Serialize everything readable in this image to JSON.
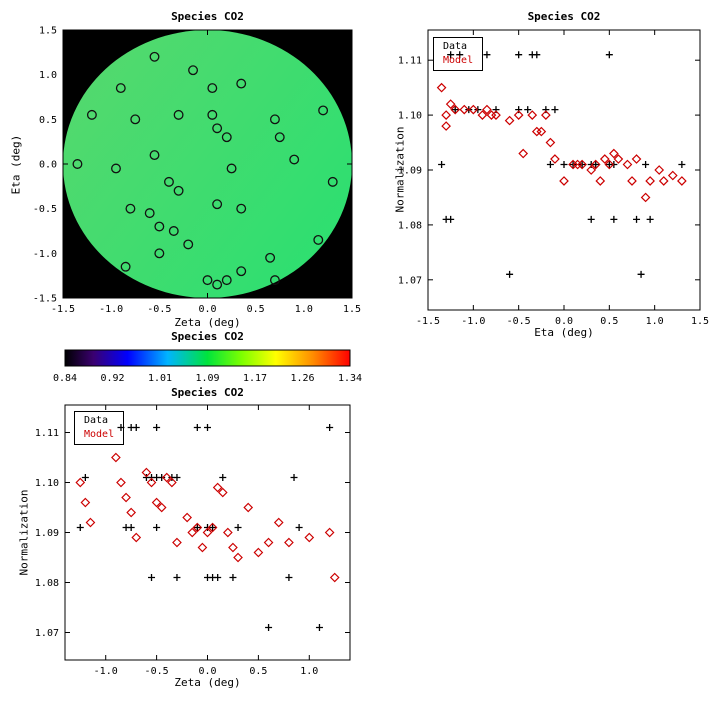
{
  "colors": {
    "data_series": "#000000",
    "model_series": "#cc0000",
    "panel_background": "#000000",
    "disk_inner": "#58d86e",
    "disk_outer": "#2edf70"
  },
  "chart_data": [
    {
      "id": "map",
      "type": "scatter",
      "title": "Species CO2",
      "xlabel": "Zeta (deg)",
      "ylabel": "Eta (deg)",
      "xlim": [
        -1.5,
        1.5
      ],
      "ylim": [
        -1.5,
        1.5
      ],
      "xticks": [
        "-1.5",
        "-1.0",
        "-0.5",
        "0.0",
        "0.5",
        "1.0",
        "1.5"
      ],
      "yticks": [
        "-1.5",
        "-1.0",
        "-0.5",
        "0.0",
        "0.5",
        "1.0",
        "1.5"
      ],
      "background": "#000000",
      "disk": {
        "cx": 0.0,
        "cy": 0.0,
        "r": 1.5
      },
      "marker": "open-circle",
      "points": [
        [
          -0.55,
          1.2
        ],
        [
          -0.15,
          1.05
        ],
        [
          -0.9,
          0.85
        ],
        [
          0.05,
          0.85
        ],
        [
          0.35,
          0.9
        ],
        [
          -1.2,
          0.55
        ],
        [
          -0.75,
          0.5
        ],
        [
          -0.3,
          0.55
        ],
        [
          0.05,
          0.55
        ],
        [
          0.1,
          0.4
        ],
        [
          0.7,
          0.5
        ],
        [
          0.75,
          0.3
        ],
        [
          1.2,
          0.6
        ],
        [
          -1.35,
          0.0
        ],
        [
          -0.95,
          -0.05
        ],
        [
          -0.55,
          0.1
        ],
        [
          -0.4,
          -0.2
        ],
        [
          -0.3,
          -0.3
        ],
        [
          0.2,
          0.3
        ],
        [
          0.25,
          -0.05
        ],
        [
          0.9,
          0.05
        ],
        [
          1.3,
          -0.2
        ],
        [
          -0.8,
          -0.5
        ],
        [
          -0.6,
          -0.55
        ],
        [
          -0.5,
          -0.7
        ],
        [
          -0.35,
          -0.75
        ],
        [
          0.1,
          -0.45
        ],
        [
          0.35,
          -0.5
        ],
        [
          -0.2,
          -0.9
        ],
        [
          -0.5,
          -1.0
        ],
        [
          -0.85,
          -1.15
        ],
        [
          0.0,
          -1.3
        ],
        [
          0.1,
          -1.35
        ],
        [
          0.2,
          -1.3
        ],
        [
          0.35,
          -1.2
        ],
        [
          0.65,
          -1.05
        ],
        [
          1.15,
          -0.85
        ],
        [
          0.7,
          -1.3
        ]
      ]
    },
    {
      "id": "eta_scatter",
      "type": "scatter",
      "title": "Species CO2",
      "xlabel": "Eta (deg)",
      "ylabel": "Normalization",
      "xlim": [
        -1.5,
        1.5
      ],
      "ylim": [
        1.0645,
        1.1155
      ],
      "xticks": [
        "-1.5",
        "-1.0",
        "-0.5",
        "0.0",
        "0.5",
        "1.0",
        "1.5"
      ],
      "yticks": [
        "1.07",
        "1.08",
        "1.09",
        "1.10",
        "1.11"
      ],
      "legend_position": "top-left",
      "series": [
        {
          "name": "Data",
          "marker": "plus",
          "color": "#000000",
          "points": [
            [
              -1.25,
              1.111
            ],
            [
              -1.15,
              1.111
            ],
            [
              -0.85,
              1.111
            ],
            [
              -0.5,
              1.111
            ],
            [
              -0.35,
              1.111
            ],
            [
              -0.3,
              1.111
            ],
            [
              0.5,
              1.111
            ],
            [
              -1.2,
              1.101
            ],
            [
              -1.05,
              1.101
            ],
            [
              -0.95,
              1.101
            ],
            [
              -0.75,
              1.101
            ],
            [
              -0.5,
              1.101
            ],
            [
              -0.4,
              1.101
            ],
            [
              -0.2,
              1.101
            ],
            [
              -0.1,
              1.101
            ],
            [
              -1.35,
              1.091
            ],
            [
              -0.15,
              1.091
            ],
            [
              0.0,
              1.091
            ],
            [
              0.1,
              1.091
            ],
            [
              0.2,
              1.091
            ],
            [
              0.3,
              1.091
            ],
            [
              0.35,
              1.091
            ],
            [
              0.5,
              1.091
            ],
            [
              0.55,
              1.091
            ],
            [
              0.9,
              1.091
            ],
            [
              1.3,
              1.091
            ],
            [
              -1.3,
              1.081
            ],
            [
              -1.25,
              1.081
            ],
            [
              0.3,
              1.081
            ],
            [
              0.55,
              1.081
            ],
            [
              0.8,
              1.081
            ],
            [
              0.95,
              1.081
            ],
            [
              -0.6,
              1.071
            ],
            [
              0.85,
              1.071
            ]
          ]
        },
        {
          "name": "Model",
          "marker": "diamond",
          "color": "#cc0000",
          "points": [
            [
              -1.35,
              1.105
            ],
            [
              -1.3,
              1.1
            ],
            [
              -1.3,
              1.098
            ],
            [
              -1.25,
              1.102
            ],
            [
              -1.2,
              1.101
            ],
            [
              -1.1,
              1.101
            ],
            [
              -1.0,
              1.101
            ],
            [
              -0.9,
              1.1
            ],
            [
              -0.85,
              1.101
            ],
            [
              -0.8,
              1.1
            ],
            [
              -0.75,
              1.1
            ],
            [
              -0.6,
              1.099
            ],
            [
              -0.5,
              1.1
            ],
            [
              -0.45,
              1.093
            ],
            [
              -0.35,
              1.1
            ],
            [
              -0.3,
              1.097
            ],
            [
              -0.25,
              1.097
            ],
            [
              -0.2,
              1.1
            ],
            [
              -0.15,
              1.095
            ],
            [
              -0.1,
              1.092
            ],
            [
              0.0,
              1.088
            ],
            [
              0.1,
              1.091
            ],
            [
              0.15,
              1.091
            ],
            [
              0.2,
              1.091
            ],
            [
              0.3,
              1.09
            ],
            [
              0.35,
              1.091
            ],
            [
              0.4,
              1.088
            ],
            [
              0.45,
              1.092
            ],
            [
              0.5,
              1.091
            ],
            [
              0.55,
              1.093
            ],
            [
              0.6,
              1.092
            ],
            [
              0.7,
              1.091
            ],
            [
              0.75,
              1.088
            ],
            [
              0.8,
              1.092
            ],
            [
              0.9,
              1.085
            ],
            [
              0.95,
              1.088
            ],
            [
              1.05,
              1.09
            ],
            [
              1.1,
              1.088
            ],
            [
              1.2,
              1.089
            ],
            [
              1.3,
              1.088
            ]
          ]
        }
      ]
    },
    {
      "id": "colorbar",
      "type": "colorbar",
      "title": "Species CO2",
      "ticks": [
        "0.84",
        "0.92",
        "1.01",
        "1.09",
        "1.17",
        "1.26",
        "1.34"
      ],
      "gradient": [
        [
          "0",
          "#000000"
        ],
        [
          "0.1",
          "#3a0070"
        ],
        [
          "0.22",
          "#0000ff"
        ],
        [
          "0.36",
          "#00b4ff"
        ],
        [
          "0.5",
          "#00e43c"
        ],
        [
          "0.62",
          "#7dff00"
        ],
        [
          "0.74",
          "#ffff00"
        ],
        [
          "0.87",
          "#ff8c00"
        ],
        [
          "1",
          "#ff0000"
        ]
      ]
    },
    {
      "id": "zeta_scatter",
      "type": "scatter",
      "title": "Species CO2",
      "xlabel": "Zeta (deg)",
      "ylabel": "Normalization",
      "xlim": [
        -1.4,
        1.4
      ],
      "ylim": [
        1.0645,
        1.1155
      ],
      "xticks": [
        "-1.0",
        "-0.5",
        "0.0",
        "0.5",
        "1.0"
      ],
      "yticks": [
        "1.07",
        "1.08",
        "1.09",
        "1.10",
        "1.11"
      ],
      "legend_position": "top-left",
      "series": [
        {
          "name": "Data",
          "marker": "plus",
          "color": "#000000",
          "points": [
            [
              -0.85,
              1.111
            ],
            [
              -0.75,
              1.111
            ],
            [
              -0.7,
              1.111
            ],
            [
              -0.5,
              1.111
            ],
            [
              -0.1,
              1.111
            ],
            [
              0.0,
              1.111
            ],
            [
              1.2,
              1.111
            ],
            [
              -1.2,
              1.101
            ],
            [
              -0.6,
              1.101
            ],
            [
              -0.55,
              1.101
            ],
            [
              -0.5,
              1.101
            ],
            [
              -0.45,
              1.101
            ],
            [
              -0.35,
              1.101
            ],
            [
              -0.3,
              1.101
            ],
            [
              0.15,
              1.101
            ],
            [
              0.85,
              1.101
            ],
            [
              -1.25,
              1.091
            ],
            [
              -0.8,
              1.091
            ],
            [
              -0.75,
              1.091
            ],
            [
              -0.5,
              1.091
            ],
            [
              -0.1,
              1.091
            ],
            [
              0.0,
              1.091
            ],
            [
              0.05,
              1.091
            ],
            [
              0.3,
              1.091
            ],
            [
              0.9,
              1.091
            ],
            [
              -0.55,
              1.081
            ],
            [
              -0.3,
              1.081
            ],
            [
              0.0,
              1.081
            ],
            [
              0.05,
              1.081
            ],
            [
              0.1,
              1.081
            ],
            [
              0.25,
              1.081
            ],
            [
              0.8,
              1.081
            ],
            [
              0.6,
              1.071
            ],
            [
              1.1,
              1.071
            ]
          ]
        },
        {
          "name": "Model",
          "marker": "diamond",
          "color": "#cc0000",
          "points": [
            [
              -1.25,
              1.1
            ],
            [
              -1.2,
              1.096
            ],
            [
              -1.15,
              1.092
            ],
            [
              -0.9,
              1.105
            ],
            [
              -0.85,
              1.1
            ],
            [
              -0.8,
              1.097
            ],
            [
              -0.75,
              1.094
            ],
            [
              -0.7,
              1.089
            ],
            [
              -0.6,
              1.102
            ],
            [
              -0.55,
              1.1
            ],
            [
              -0.5,
              1.096
            ],
            [
              -0.45,
              1.095
            ],
            [
              -0.4,
              1.101
            ],
            [
              -0.35,
              1.1
            ],
            [
              -0.3,
              1.088
            ],
            [
              -0.2,
              1.093
            ],
            [
              -0.15,
              1.09
            ],
            [
              -0.1,
              1.091
            ],
            [
              -0.05,
              1.087
            ],
            [
              0.0,
              1.09
            ],
            [
              0.05,
              1.091
            ],
            [
              0.1,
              1.099
            ],
            [
              0.15,
              1.098
            ],
            [
              0.2,
              1.09
            ],
            [
              0.25,
              1.087
            ],
            [
              0.3,
              1.085
            ],
            [
              0.4,
              1.095
            ],
            [
              0.5,
              1.086
            ],
            [
              0.6,
              1.088
            ],
            [
              0.7,
              1.092
            ],
            [
              0.8,
              1.088
            ],
            [
              1.0,
              1.089
            ],
            [
              1.2,
              1.09
            ],
            [
              1.25,
              1.081
            ]
          ]
        }
      ]
    }
  ]
}
